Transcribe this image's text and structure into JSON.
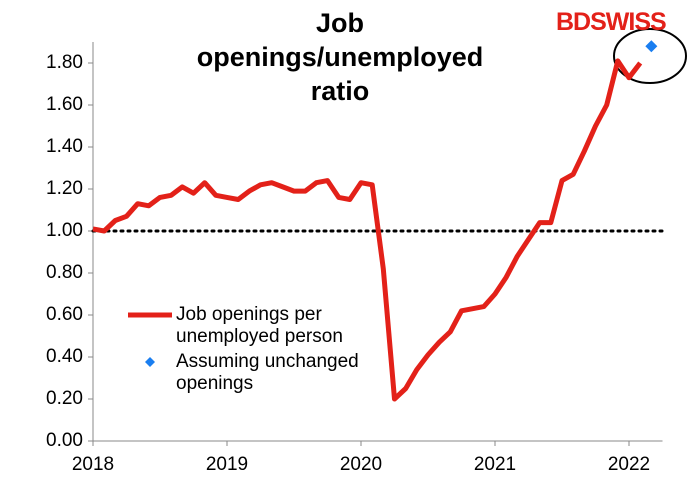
{
  "logo": "BDSWISS",
  "chart_data": {
    "type": "line",
    "title": "Job openings/unemployed ratio",
    "categories": [
      "2018",
      null,
      null,
      null,
      null,
      null,
      null,
      null,
      null,
      null,
      null,
      null,
      "2019",
      null,
      null,
      null,
      null,
      null,
      null,
      null,
      null,
      null,
      null,
      null,
      "2020",
      null,
      null,
      null,
      null,
      null,
      null,
      null,
      null,
      null,
      null,
      null,
      "2021",
      null,
      null,
      null,
      null,
      null,
      null,
      null,
      null,
      null,
      null,
      null,
      "2022",
      null,
      null,
      null
    ],
    "series": [
      {
        "name": "Job openings per unemployed person",
        "color": "#e32119",
        "marker": "line",
        "values": [
          1.01,
          1.0,
          1.05,
          1.07,
          1.13,
          1.12,
          1.16,
          1.17,
          1.21,
          1.18,
          1.23,
          1.17,
          1.16,
          1.15,
          1.19,
          1.22,
          1.23,
          1.21,
          1.19,
          1.19,
          1.23,
          1.24,
          1.16,
          1.15,
          1.23,
          1.22,
          0.82,
          0.2,
          0.25,
          0.34,
          0.41,
          0.47,
          0.52,
          0.62,
          0.63,
          0.64,
          0.7,
          0.78,
          0.88,
          0.96,
          1.04,
          1.04,
          1.24,
          1.27,
          1.38,
          1.5,
          1.6,
          1.81,
          1.73,
          1.8,
          null,
          null
        ]
      },
      {
        "name": "Assuming unchanged openings",
        "color": "#1a7ef0",
        "marker": "diamond",
        "values": [
          null,
          null,
          null,
          null,
          null,
          null,
          null,
          null,
          null,
          null,
          null,
          null,
          null,
          null,
          null,
          null,
          null,
          null,
          null,
          null,
          null,
          null,
          null,
          null,
          null,
          null,
          null,
          null,
          null,
          null,
          null,
          null,
          null,
          null,
          null,
          null,
          null,
          null,
          null,
          null,
          null,
          null,
          null,
          null,
          null,
          null,
          null,
          null,
          null,
          null,
          1.88,
          null
        ]
      }
    ],
    "ylim": [
      0,
      1.9
    ],
    "yticks": [
      {
        "value": 0,
        "label": "0.00"
      },
      {
        "value": 0.2,
        "label": "0.20"
      },
      {
        "value": 0.4,
        "label": "0.40"
      },
      {
        "value": 0.6,
        "label": "0.60"
      },
      {
        "value": 0.8,
        "label": "0.80"
      },
      {
        "value": 1,
        "label": "1.00"
      },
      {
        "value": 1.2,
        "label": "1.20"
      },
      {
        "value": 1.4,
        "label": "1.40"
      },
      {
        "value": 1.6,
        "label": "1.60"
      },
      {
        "value": 1.8,
        "label": "1.80"
      }
    ],
    "reference_line": 1,
    "legend": "left"
  }
}
